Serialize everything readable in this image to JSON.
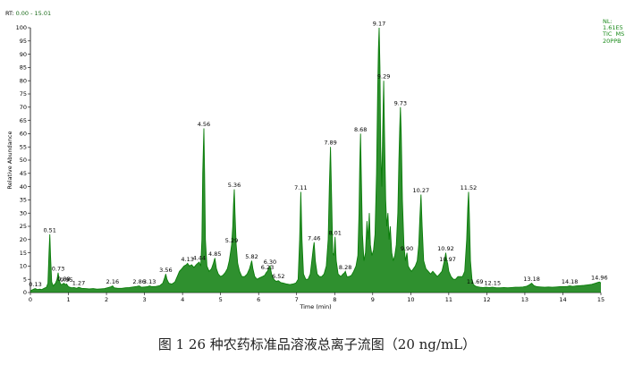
{
  "header": {
    "rt_prefix": "RT:",
    "rt_range": "0.00 - 15.01"
  },
  "info": {
    "nl_label": "NL:",
    "nl_value": "1.61E5",
    "scan": "TIC  MS",
    "sample": "20PPB"
  },
  "caption": "图 1 26 种农药标准品溶液总离子流图（20 ng/mL）",
  "colors": {
    "trace": "#0a7d0a",
    "info_text": "#1a8a1a"
  },
  "chart_data": {
    "type": "line",
    "xlabel": "Time (min)",
    "ylabel": "Relative Abundance",
    "xlim": [
      0,
      15
    ],
    "ylim": [
      0,
      100
    ],
    "xticks": [
      0,
      1,
      2,
      3,
      4,
      5,
      6,
      7,
      8,
      9,
      10,
      11,
      12,
      13,
      14,
      15
    ],
    "yticks": [
      0,
      5,
      10,
      15,
      20,
      25,
      30,
      35,
      40,
      45,
      50,
      55,
      60,
      65,
      70,
      75,
      80,
      85,
      90,
      95,
      100
    ],
    "peaks": [
      {
        "label": "0.13",
        "x": 0.13,
        "y": 1.5
      },
      {
        "label": "0.51",
        "x": 0.51,
        "y": 22
      },
      {
        "label": "0.73",
        "x": 0.73,
        "y": 7.5
      },
      {
        "label": "0.88",
        "x": 0.88,
        "y": 3.5
      },
      {
        "label": "0.95",
        "x": 0.95,
        "y": 3.2
      },
      {
        "label": "1.27",
        "x": 1.27,
        "y": 2
      },
      {
        "label": "2.16",
        "x": 2.16,
        "y": 2.5
      },
      {
        "label": "2.86",
        "x": 2.86,
        "y": 2.5
      },
      {
        "label": "3.13",
        "x": 3.13,
        "y": 2.5
      },
      {
        "label": "3.56",
        "x": 3.56,
        "y": 7
      },
      {
        "label": "4.13",
        "x": 4.13,
        "y": 11
      },
      {
        "label": "4.44",
        "x": 4.44,
        "y": 11.5
      },
      {
        "label": "4.56",
        "x": 4.56,
        "y": 62
      },
      {
        "label": "4.85",
        "x": 4.85,
        "y": 13
      },
      {
        "label": "5.29",
        "x": 5.29,
        "y": 18
      },
      {
        "label": "5.36",
        "x": 5.36,
        "y": 39
      },
      {
        "label": "5.82",
        "x": 5.82,
        "y": 12
      },
      {
        "label": "6.23",
        "x": 6.23,
        "y": 8
      },
      {
        "label": "6.30",
        "x": 6.3,
        "y": 10
      },
      {
        "label": "6.52",
        "x": 6.52,
        "y": 4.5
      },
      {
        "label": "7.11",
        "x": 7.11,
        "y": 38
      },
      {
        "label": "7.46",
        "x": 7.46,
        "y": 19
      },
      {
        "label": "7.89",
        "x": 7.89,
        "y": 55
      },
      {
        "label": "8.01",
        "x": 8.01,
        "y": 21
      },
      {
        "label": "8.28",
        "x": 8.28,
        "y": 8
      },
      {
        "label": "8.68",
        "x": 8.68,
        "y": 60
      },
      {
        "label": "9.17",
        "x": 9.17,
        "y": 100
      },
      {
        "label": "9.29",
        "x": 9.29,
        "y": 80
      },
      {
        "label": "9.73",
        "x": 9.73,
        "y": 70
      },
      {
        "label": "9.90",
        "x": 9.9,
        "y": 15
      },
      {
        "label": "10.27",
        "x": 10.27,
        "y": 37
      },
      {
        "label": "10.92",
        "x": 10.92,
        "y": 15
      },
      {
        "label": "10.97",
        "x": 10.97,
        "y": 11
      },
      {
        "label": "11.52",
        "x": 11.52,
        "y": 38
      },
      {
        "label": "11.69",
        "x": 11.69,
        "y": 2.5
      },
      {
        "label": "12.15",
        "x": 12.15,
        "y": 2
      },
      {
        "label": "13.18",
        "x": 13.18,
        "y": 3.5
      },
      {
        "label": "14.18",
        "x": 14.18,
        "y": 2.5
      },
      {
        "label": "14.96",
        "x": 14.96,
        "y": 4
      }
    ],
    "trace_points": [
      [
        0.0,
        0.6
      ],
      [
        0.05,
        1.0
      ],
      [
        0.1,
        1.4
      ],
      [
        0.13,
        1.5
      ],
      [
        0.18,
        1.1
      ],
      [
        0.25,
        1.3
      ],
      [
        0.3,
        1.1
      ],
      [
        0.36,
        1.6
      ],
      [
        0.42,
        2.0
      ],
      [
        0.46,
        3.5
      ],
      [
        0.49,
        15
      ],
      [
        0.51,
        22
      ],
      [
        0.53,
        14
      ],
      [
        0.56,
        4
      ],
      [
        0.6,
        2.5
      ],
      [
        0.66,
        3.5
      ],
      [
        0.7,
        5
      ],
      [
        0.73,
        7.5
      ],
      [
        0.76,
        4.5
      ],
      [
        0.8,
        3
      ],
      [
        0.85,
        3.2
      ],
      [
        0.88,
        3.5
      ],
      [
        0.92,
        3.0
      ],
      [
        0.95,
        3.2
      ],
      [
        1.0,
        2.2
      ],
      [
        1.08,
        1.8
      ],
      [
        1.15,
        1.9
      ],
      [
        1.22,
        1.6
      ],
      [
        1.27,
        2.0
      ],
      [
        1.35,
        1.6
      ],
      [
        1.45,
        1.5
      ],
      [
        1.55,
        1.4
      ],
      [
        1.65,
        1.5
      ],
      [
        1.75,
        1.3
      ],
      [
        1.85,
        1.4
      ],
      [
        1.95,
        1.5
      ],
      [
        2.05,
        1.9
      ],
      [
        2.12,
        2.2
      ],
      [
        2.16,
        2.5
      ],
      [
        2.2,
        1.8
      ],
      [
        2.3,
        1.6
      ],
      [
        2.4,
        1.6
      ],
      [
        2.5,
        1.8
      ],
      [
        2.6,
        1.9
      ],
      [
        2.7,
        2.1
      ],
      [
        2.8,
        2.3
      ],
      [
        2.86,
        2.5
      ],
      [
        2.92,
        2.0
      ],
      [
        3.0,
        2.1
      ],
      [
        3.08,
        2.2
      ],
      [
        3.13,
        2.5
      ],
      [
        3.2,
        2.2
      ],
      [
        3.3,
        2.3
      ],
      [
        3.4,
        2.6
      ],
      [
        3.48,
        3.5
      ],
      [
        3.53,
        5.5
      ],
      [
        3.56,
        7
      ],
      [
        3.59,
        5
      ],
      [
        3.64,
        3.5
      ],
      [
        3.72,
        3.2
      ],
      [
        3.8,
        4
      ],
      [
        3.86,
        6
      ],
      [
        3.92,
        8
      ],
      [
        3.98,
        9
      ],
      [
        4.04,
        10
      ],
      [
        4.1,
        10.5
      ],
      [
        4.13,
        11
      ],
      [
        4.18,
        10
      ],
      [
        4.24,
        10.5
      ],
      [
        4.3,
        9.5
      ],
      [
        4.36,
        10.5
      ],
      [
        4.4,
        11
      ],
      [
        4.44,
        11.5
      ],
      [
        4.48,
        10
      ],
      [
        4.51,
        20
      ],
      [
        4.53,
        45
      ],
      [
        4.56,
        62
      ],
      [
        4.58,
        45
      ],
      [
        4.6,
        20
      ],
      [
        4.64,
        10
      ],
      [
        4.7,
        8
      ],
      [
        4.76,
        9
      ],
      [
        4.81,
        11
      ],
      [
        4.85,
        13
      ],
      [
        4.89,
        9
      ],
      [
        4.94,
        7
      ],
      [
        5.0,
        6
      ],
      [
        5.06,
        6.5
      ],
      [
        5.12,
        7.5
      ],
      [
        5.18,
        9
      ],
      [
        5.23,
        12
      ],
      [
        5.27,
        16
      ],
      [
        5.29,
        18
      ],
      [
        5.32,
        25
      ],
      [
        5.34,
        33
      ],
      [
        5.36,
        39
      ],
      [
        5.38,
        30
      ],
      [
        5.41,
        18
      ],
      [
        5.45,
        11
      ],
      [
        5.5,
        8
      ],
      [
        5.56,
        6
      ],
      [
        5.63,
        6
      ],
      [
        5.7,
        7
      ],
      [
        5.76,
        9
      ],
      [
        5.8,
        11
      ],
      [
        5.82,
        12
      ],
      [
        5.85,
        9
      ],
      [
        5.9,
        6
      ],
      [
        5.96,
        5
      ],
      [
        6.02,
        5.5
      ],
      [
        6.1,
        6
      ],
      [
        6.16,
        6.5
      ],
      [
        6.2,
        7.5
      ],
      [
        6.23,
        8
      ],
      [
        6.26,
        9
      ],
      [
        6.3,
        10
      ],
      [
        6.34,
        7
      ],
      [
        6.4,
        5
      ],
      [
        6.46,
        4.2
      ],
      [
        6.52,
        4.5
      ],
      [
        6.58,
        3.8
      ],
      [
        6.66,
        3.5
      ],
      [
        6.74,
        3.2
      ],
      [
        6.82,
        3.0
      ],
      [
        6.9,
        3.2
      ],
      [
        6.98,
        3.6
      ],
      [
        7.04,
        5
      ],
      [
        7.08,
        20
      ],
      [
        7.11,
        38
      ],
      [
        7.14,
        20
      ],
      [
        7.18,
        7
      ],
      [
        7.24,
        5
      ],
      [
        7.3,
        5
      ],
      [
        7.36,
        7
      ],
      [
        7.4,
        12
      ],
      [
        7.44,
        17
      ],
      [
        7.46,
        19
      ],
      [
        7.49,
        12
      ],
      [
        7.54,
        7
      ],
      [
        7.6,
        6
      ],
      [
        7.66,
        6
      ],
      [
        7.72,
        7
      ],
      [
        7.78,
        10
      ],
      [
        7.83,
        20
      ],
      [
        7.86,
        40
      ],
      [
        7.89,
        55
      ],
      [
        7.92,
        35
      ],
      [
        7.95,
        15
      ],
      [
        7.98,
        14
      ],
      [
        8.01,
        21
      ],
      [
        8.04,
        12
      ],
      [
        8.09,
        7
      ],
      [
        8.16,
        6
      ],
      [
        8.22,
        7
      ],
      [
        8.26,
        7.5
      ],
      [
        8.28,
        8
      ],
      [
        8.32,
        6
      ],
      [
        8.38,
        6
      ],
      [
        8.44,
        6.5
      ],
      [
        8.5,
        8
      ],
      [
        8.56,
        10
      ],
      [
        8.61,
        14
      ],
      [
        8.64,
        30
      ],
      [
        8.66,
        48
      ],
      [
        8.68,
        60
      ],
      [
        8.7,
        45
      ],
      [
        8.73,
        22
      ],
      [
        8.77,
        12
      ],
      [
        8.81,
        15
      ],
      [
        8.85,
        27
      ],
      [
        8.88,
        20
      ],
      [
        8.91,
        30
      ],
      [
        8.94,
        18
      ],
      [
        8.98,
        14
      ],
      [
        9.02,
        16
      ],
      [
        9.06,
        22
      ],
      [
        9.1,
        45
      ],
      [
        9.13,
        75
      ],
      [
        9.15,
        92
      ],
      [
        9.17,
        100
      ],
      [
        9.19,
        85
      ],
      [
        9.21,
        55
      ],
      [
        9.24,
        40
      ],
      [
        9.26,
        60
      ],
      [
        9.29,
        80
      ],
      [
        9.31,
        60
      ],
      [
        9.34,
        35
      ],
      [
        9.37,
        25
      ],
      [
        9.4,
        30
      ],
      [
        9.43,
        20
      ],
      [
        9.46,
        25
      ],
      [
        9.5,
        15
      ],
      [
        9.54,
        12
      ],
      [
        9.58,
        14
      ],
      [
        9.62,
        18
      ],
      [
        9.66,
        30
      ],
      [
        9.69,
        50
      ],
      [
        9.71,
        62
      ],
      [
        9.73,
        70
      ],
      [
        9.75,
        60
      ],
      [
        9.78,
        35
      ],
      [
        9.82,
        18
      ],
      [
        9.86,
        12
      ],
      [
        9.9,
        15
      ],
      [
        9.93,
        10
      ],
      [
        9.97,
        9
      ],
      [
        10.02,
        8
      ],
      [
        10.07,
        9
      ],
      [
        10.12,
        10
      ],
      [
        10.17,
        12
      ],
      [
        10.21,
        18
      ],
      [
        10.24,
        28
      ],
      [
        10.27,
        37
      ],
      [
        10.3,
        25
      ],
      [
        10.34,
        12
      ],
      [
        10.4,
        9
      ],
      [
        10.46,
        8
      ],
      [
        10.52,
        7
      ],
      [
        10.58,
        8
      ],
      [
        10.64,
        7
      ],
      [
        10.7,
        6
      ],
      [
        10.76,
        7
      ],
      [
        10.82,
        8
      ],
      [
        10.87,
        11
      ],
      [
        10.9,
        13
      ],
      [
        10.92,
        15
      ],
      [
        10.95,
        12
      ],
      [
        10.97,
        11
      ],
      [
        11.0,
        8
      ],
      [
        11.06,
        6
      ],
      [
        11.12,
        5
      ],
      [
        11.18,
        5
      ],
      [
        11.24,
        6
      ],
      [
        11.3,
        6
      ],
      [
        11.36,
        6
      ],
      [
        11.42,
        8
      ],
      [
        11.47,
        20
      ],
      [
        11.5,
        32
      ],
      [
        11.52,
        38
      ],
      [
        11.54,
        30
      ],
      [
        11.57,
        12
      ],
      [
        11.61,
        5
      ],
      [
        11.65,
        3
      ],
      [
        11.69,
        2.5
      ],
      [
        11.74,
        2.2
      ],
      [
        11.82,
        2.0
      ],
      [
        11.9,
        1.9
      ],
      [
        11.98,
        2.0
      ],
      [
        12.06,
        1.9
      ],
      [
        12.15,
        2.0
      ],
      [
        12.25,
        1.8
      ],
      [
        12.35,
        1.8
      ],
      [
        12.45,
        1.9
      ],
      [
        12.55,
        1.8
      ],
      [
        12.65,
        1.9
      ],
      [
        12.75,
        2.0
      ],
      [
        12.85,
        2.0
      ],
      [
        12.95,
        2.1
      ],
      [
        13.05,
        2.4
      ],
      [
        13.12,
        2.9
      ],
      [
        13.18,
        3.5
      ],
      [
        13.24,
        2.6
      ],
      [
        13.32,
        2.2
      ],
      [
        13.42,
        2.1
      ],
      [
        13.52,
        2.0
      ],
      [
        13.62,
        2.1
      ],
      [
        13.72,
        2.0
      ],
      [
        13.82,
        2.1
      ],
      [
        13.92,
        2.2
      ],
      [
        14.02,
        2.2
      ],
      [
        14.12,
        2.3
      ],
      [
        14.18,
        2.5
      ],
      [
        14.26,
        2.3
      ],
      [
        14.36,
        2.5
      ],
      [
        14.46,
        2.6
      ],
      [
        14.56,
        2.7
      ],
      [
        14.66,
        2.9
      ],
      [
        14.76,
        3.1
      ],
      [
        14.86,
        3.5
      ],
      [
        14.93,
        3.9
      ],
      [
        14.96,
        4.0
      ],
      [
        15.0,
        3.6
      ]
    ]
  }
}
